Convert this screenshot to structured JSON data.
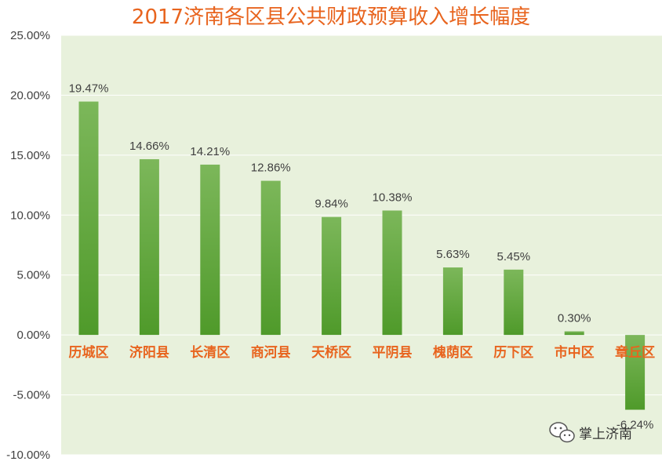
{
  "chart_data": {
    "type": "bar",
    "title": "2017济南各区县公共财政预算收入增长幅度",
    "categories": [
      "历城区",
      "济阳县",
      "长清区",
      "商河县",
      "天桥区",
      "平阴县",
      "槐荫区",
      "历下区",
      "市中区",
      "章丘区"
    ],
    "values": [
      19.47,
      14.66,
      14.21,
      12.86,
      9.84,
      10.38,
      5.63,
      5.45,
      0.3,
      -6.24
    ],
    "value_labels": [
      "19.47%",
      "14.66%",
      "14.21%",
      "12.86%",
      "9.84%",
      "10.38%",
      "5.63%",
      "5.45%",
      "0.30%",
      "-6.24%"
    ],
    "yticks": [
      25,
      20,
      15,
      10,
      5,
      0,
      -5,
      -10
    ],
    "ytick_labels": [
      "25.00%",
      "20.00%",
      "15.00%",
      "10.00%",
      "5.00%",
      "0.00%",
      "-5.00%",
      "-10.00%"
    ],
    "ylim": [
      -10,
      25
    ],
    "grid": true,
    "xlabel": "",
    "ylabel": ""
  },
  "colors": {
    "plot_background": "#e8f1dc",
    "bar_top": "#7cb75a",
    "bar_bottom": "#4f9a2a",
    "title": "#e8641e",
    "category_label": "#e8641e",
    "gridline": "#ffffff"
  },
  "watermark": {
    "icon": "wechat-icon",
    "text": "掌上济南"
  }
}
